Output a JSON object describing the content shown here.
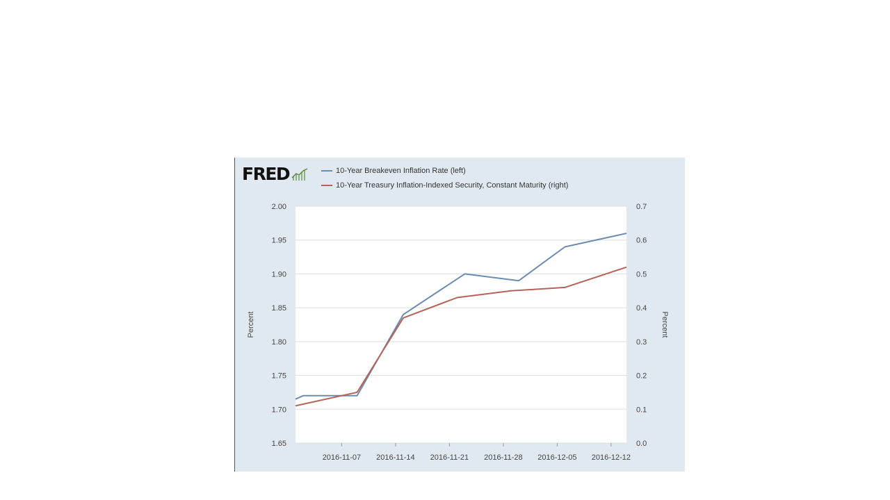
{
  "logo": {
    "text": "FRED"
  },
  "colors": {
    "series_left": "#6a8cb0",
    "series_right": "#b5635a",
    "panel": "#e1e9f0",
    "plot": "#ffffff",
    "grid": "#dddddd"
  },
  "chart_data": {
    "type": "line",
    "title": "",
    "legend": [
      "10-Year Breakeven Inflation Rate (left)",
      "10-Year Treasury Inflation-Indexed Security, Constant Maturity (right)"
    ],
    "legend_position": "top",
    "grid": true,
    "xlim": [
      "2016-11-01",
      "2016-12-14"
    ],
    "x_ticks": [
      "2016-11-07",
      "2016-11-14",
      "2016-11-21",
      "2016-11-28",
      "2016-12-05",
      "2016-12-12"
    ],
    "y_left": {
      "label": "Percent",
      "range": [
        1.65,
        2.0
      ],
      "ticks": [
        "1.65",
        "1.70",
        "1.75",
        "1.80",
        "1.85",
        "1.90",
        "1.95",
        "2.00"
      ]
    },
    "y_right": {
      "label": "Percent",
      "range": [
        0.0,
        0.7
      ],
      "ticks": [
        "0.0",
        "0.1",
        "0.2",
        "0.3",
        "0.4",
        "0.5",
        "0.6",
        "0.7"
      ]
    },
    "series": [
      {
        "name": "10-Year Breakeven Inflation Rate (left)",
        "axis": "left",
        "x": [
          "2016-11-01",
          "2016-11-02",
          "2016-11-09",
          "2016-11-15",
          "2016-11-23",
          "2016-11-30",
          "2016-12-06",
          "2016-12-14"
        ],
        "y": [
          1.715,
          1.72,
          1.72,
          1.84,
          1.9,
          1.89,
          1.94,
          1.96
        ]
      },
      {
        "name": "10-Year Treasury Inflation-Indexed Security, Constant Maturity (right)",
        "axis": "right",
        "x": [
          "2016-11-01",
          "2016-11-09",
          "2016-11-15",
          "2016-11-22",
          "2016-11-29",
          "2016-12-06",
          "2016-12-14"
        ],
        "y": [
          0.11,
          0.15,
          0.37,
          0.43,
          0.45,
          0.46,
          0.52
        ]
      }
    ]
  }
}
